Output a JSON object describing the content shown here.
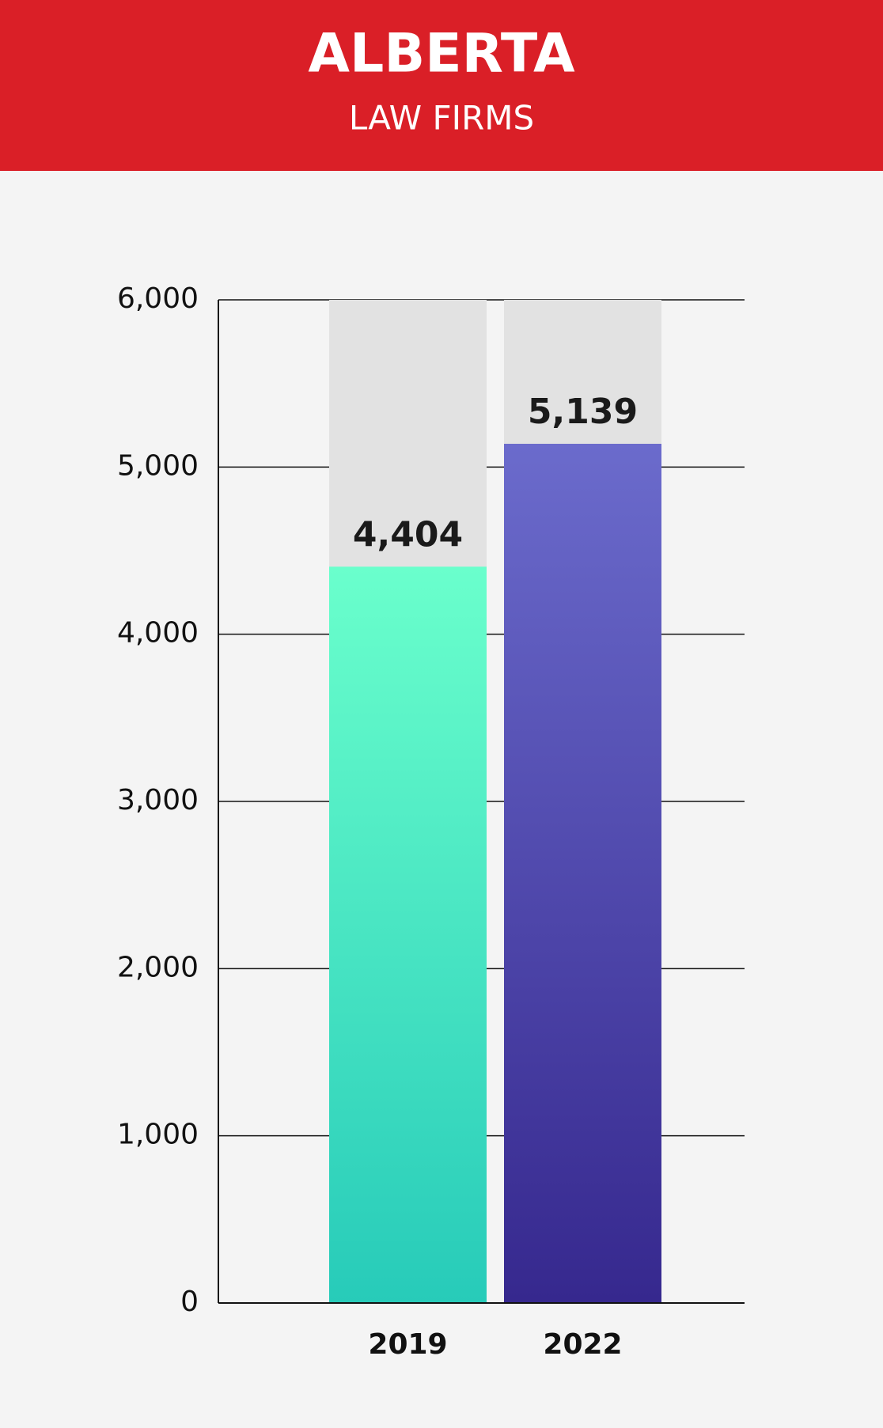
{
  "chart_data": {
    "type": "bar",
    "title": "ALBERTA",
    "subtitle": "LAW FIRMS",
    "categories": [
      "2019",
      "2022"
    ],
    "values": [
      4404,
      5139
    ],
    "value_labels": [
      "4,404",
      "5,139"
    ],
    "colors": [
      [
        "#6affcc",
        "#27cbb9"
      ],
      [
        "#6b6bcc",
        "#36288e"
      ]
    ],
    "background_bar_color": "#e2e2e2",
    "ylim": [
      0,
      6000
    ],
    "yticks": [
      0,
      {
        "value": 1000,
        "label": "1,000"
      },
      {
        "value": 2000,
        "label": "2,000"
      },
      {
        "value": 3000,
        "label": "3,000"
      },
      {
        "value": 4000,
        "label": "4,000"
      },
      {
        "value": 5000,
        "label": "5,000"
      },
      {
        "value": 6000,
        "label": "6,000"
      }
    ],
    "grid": true
  }
}
